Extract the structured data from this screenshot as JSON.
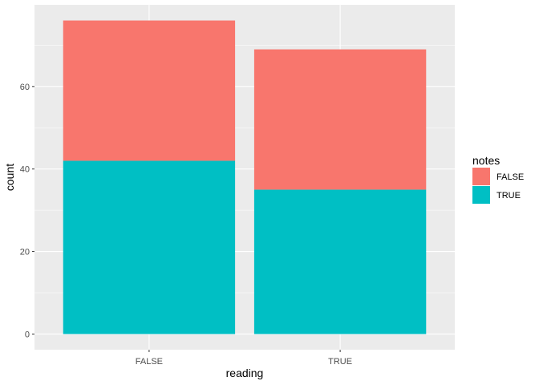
{
  "chart_data": {
    "type": "bar",
    "stacked": true,
    "xlabel": "reading",
    "ylabel": "count",
    "categories": [
      "FALSE",
      "TRUE"
    ],
    "series": [
      {
        "name": "TRUE",
        "values": [
          42,
          35
        ],
        "color": "#00BFC4"
      },
      {
        "name": "FALSE",
        "values": [
          34,
          34
        ],
        "color": "#F8766D"
      }
    ],
    "ylim": [
      -3.8,
      79.8
    ],
    "yticks": [
      0,
      20,
      40,
      60
    ],
    "grid": true,
    "legend": {
      "title": "notes",
      "position": "right",
      "entries": [
        {
          "label": "FALSE",
          "color": "#F8766D"
        },
        {
          "label": "TRUE",
          "color": "#00BFC4"
        }
      ]
    }
  }
}
